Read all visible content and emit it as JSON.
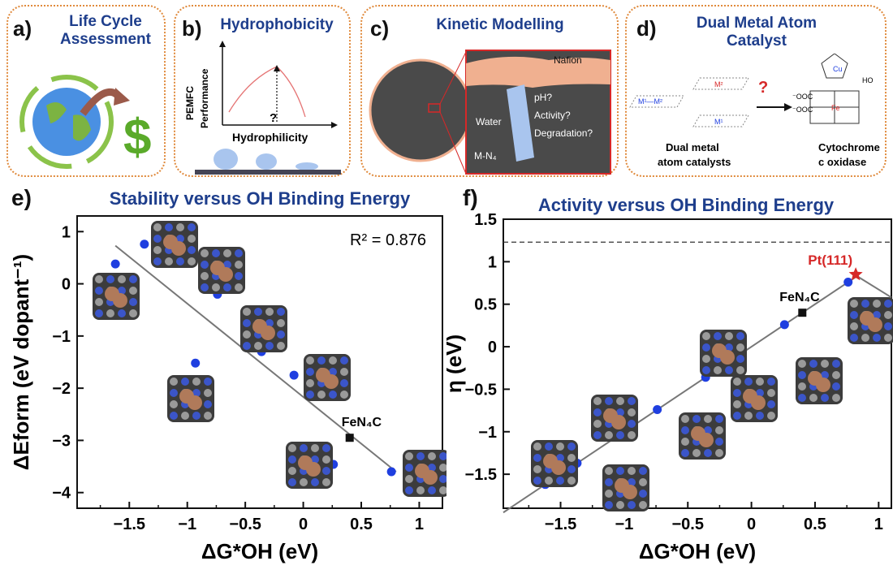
{
  "panels": [
    {
      "label": "a)",
      "title": "Life Cycle Assessment"
    },
    {
      "label": "b)",
      "title": "Hydrophobicity",
      "ylabel": "PEMFC Performance",
      "xlabel": "Hydrophilicity",
      "question": "?"
    },
    {
      "label": "c)",
      "title": "Kinetic Modelling",
      "nafion": "Nafion",
      "ph": "pH?",
      "water": "Water",
      "activity": "Activity?",
      "degradation": "Degradation?",
      "mn4": "M-N₄"
    },
    {
      "label": "d)",
      "title": "Dual Metal Atom Catalyst",
      "m1m2": "M¹—M²",
      "m2": "M²",
      "m1": "M¹",
      "question": "?",
      "dual": "Dual metal atom catalysts",
      "cyto": "Cytochrome c oxidase",
      "cu": "Cu",
      "fe": "Fe",
      "cooc1": "⁻OOC",
      "cooc2": "⁻OOC",
      "ho": "HO"
    }
  ],
  "colors": {
    "accent": "#1e3e8c",
    "dots": "#1f3fe0",
    "star": "#d62828",
    "border": "#e08a3c"
  },
  "chart_data": [
    {
      "type": "scatter",
      "label": "e)",
      "title": "Stability versus OH Binding Energy",
      "xlabel": "ΔG*OH (eV)",
      "ylabel": "ΔEform (eV dopant⁻¹)",
      "xlim": [
        -1.95,
        1.2
      ],
      "ylim": [
        -4.3,
        1.3
      ],
      "xticks": [
        -1.5,
        -1,
        -0.5,
        0,
        0.5,
        1
      ],
      "xtick_labels": [
        "−1.5",
        "−1",
        "−0.5",
        "0",
        "0.5",
        "1"
      ],
      "yticks": [
        -4,
        -3,
        -2,
        -1,
        0,
        1
      ],
      "ytick_labels": [
        "−4",
        "−3",
        "−2",
        "−1",
        "0",
        "1"
      ],
      "annotation": "R² = 0.876",
      "points": [
        {
          "x": -1.62,
          "y": 0.38
        },
        {
          "x": -1.37,
          "y": 0.76
        },
        {
          "x": -0.93,
          "y": -1.52
        },
        {
          "x": -0.74,
          "y": -0.2
        },
        {
          "x": -0.36,
          "y": -1.3
        },
        {
          "x": -0.08,
          "y": -1.75
        },
        {
          "x": 0.26,
          "y": -3.46
        },
        {
          "x": 0.76,
          "y": -3.6
        }
      ],
      "reference": {
        "x": 0.4,
        "y": -2.95,
        "label": "FeN₄C"
      },
      "fit_line": {
        "x": [
          -1.62,
          0.8
        ],
        "y": [
          0.73,
          -3.6
        ]
      }
    },
    {
      "type": "scatter",
      "label": "f)",
      "title": "Activity versus OH Binding Energy",
      "xlabel": "ΔG*OH (eV)",
      "ylabel": "η (eV)",
      "xlim": [
        -1.95,
        1.1
      ],
      "ylim": [
        -1.9,
        1.5
      ],
      "xticks": [
        -1.5,
        -1,
        -0.5,
        0,
        0.5,
        1
      ],
      "xtick_labels": [
        "−1.5",
        "−1",
        "−0.5",
        "0",
        "0.5",
        "1"
      ],
      "yticks": [
        -1.5,
        -1,
        -0.5,
        0,
        0.5,
        1,
        1.5
      ],
      "ytick_labels": [
        "−1.5",
        "−1",
        "−0.5",
        "0",
        "0.5",
        "1",
        "1.5"
      ],
      "dashed_y": 1.23,
      "points": [
        {
          "x": -1.62,
          "y": -1.62
        },
        {
          "x": -1.37,
          "y": -1.37
        },
        {
          "x": -0.93,
          "y": -0.93
        },
        {
          "x": -0.74,
          "y": -0.74
        },
        {
          "x": -0.36,
          "y": -0.36
        },
        {
          "x": -0.08,
          "y": -0.08
        },
        {
          "x": 0.26,
          "y": 0.26
        },
        {
          "x": 0.76,
          "y": 0.76
        }
      ],
      "reference": {
        "x": 0.4,
        "y": 0.4,
        "label": "FeN₄C"
      },
      "star": {
        "x": 0.82,
        "y": 0.85,
        "label": "Pt(111)"
      },
      "fit_line": {
        "x": [
          -1.95,
          0.83
        ],
        "y": [
          -1.95,
          0.83
        ]
      },
      "fit_line2": {
        "x": [
          0.83,
          1.1
        ],
        "y": [
          0.83,
          0.58
        ]
      }
    }
  ]
}
